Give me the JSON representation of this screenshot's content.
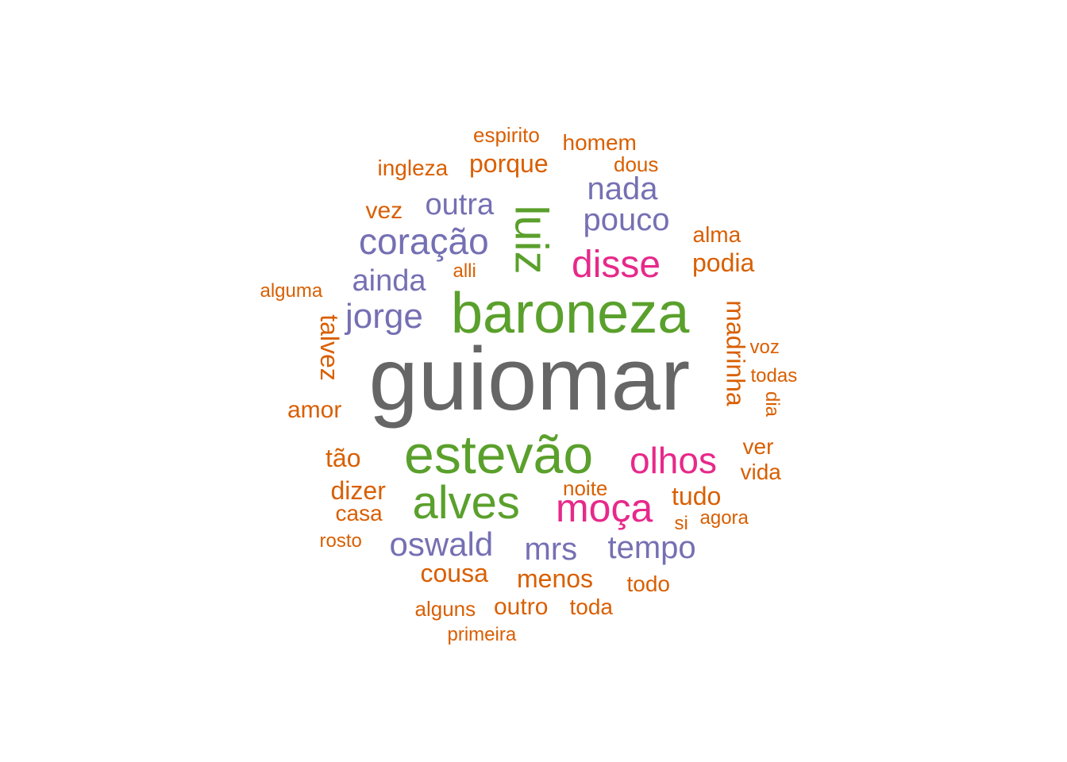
{
  "colors": {
    "gray": "#666666",
    "green": "#5aa02c",
    "magenta": "#e7298a",
    "purple": "#7570b3",
    "orange": "#d95f02"
  },
  "words": [
    {
      "text": "guiomar",
      "freq_tier": 1,
      "color": "#666666"
    },
    {
      "text": "baroneza",
      "freq_tier": 2,
      "color": "#5aa02c"
    },
    {
      "text": "estevão",
      "freq_tier": 2,
      "color": "#5aa02c"
    },
    {
      "text": "alves",
      "freq_tier": 3,
      "color": "#5aa02c"
    },
    {
      "text": "luiz",
      "freq_tier": 3,
      "color": "#5aa02c"
    },
    {
      "text": "moça",
      "freq_tier": 4,
      "color": "#e7298a"
    },
    {
      "text": "disse",
      "freq_tier": 4,
      "color": "#e7298a"
    },
    {
      "text": "olhos",
      "freq_tier": 4,
      "color": "#e7298a"
    },
    {
      "text": "coração",
      "freq_tier": 5,
      "color": "#7570b3"
    },
    {
      "text": "jorge",
      "freq_tier": 5,
      "color": "#7570b3"
    },
    {
      "text": "oswald",
      "freq_tier": 5,
      "color": "#7570b3"
    },
    {
      "text": "mrs",
      "freq_tier": 5,
      "color": "#7570b3"
    },
    {
      "text": "tempo",
      "freq_tier": 5,
      "color": "#7570b3"
    },
    {
      "text": "pouco",
      "freq_tier": 5,
      "color": "#7570b3"
    },
    {
      "text": "nada",
      "freq_tier": 5,
      "color": "#7570b3"
    },
    {
      "text": "outra",
      "freq_tier": 5,
      "color": "#7570b3"
    },
    {
      "text": "ainda",
      "freq_tier": 5,
      "color": "#7570b3"
    },
    {
      "text": "madrinha",
      "freq_tier": 6,
      "color": "#d95f02"
    },
    {
      "text": "talvez",
      "freq_tier": 6,
      "color": "#d95f02"
    },
    {
      "text": "cousa",
      "freq_tier": 6,
      "color": "#d95f02"
    },
    {
      "text": "menos",
      "freq_tier": 6,
      "color": "#d95f02"
    },
    {
      "text": "tudo",
      "freq_tier": 6,
      "color": "#d95f02"
    },
    {
      "text": "podia",
      "freq_tier": 6,
      "color": "#d95f02"
    },
    {
      "text": "porque",
      "freq_tier": 6,
      "color": "#d95f02"
    },
    {
      "text": "tão",
      "freq_tier": 6,
      "color": "#d95f02"
    },
    {
      "text": "dizer",
      "freq_tier": 6,
      "color": "#d95f02"
    },
    {
      "text": "amor",
      "freq_tier": 6,
      "color": "#d95f02"
    },
    {
      "text": "outro",
      "freq_tier": 6,
      "color": "#d95f02"
    },
    {
      "text": "vez",
      "freq_tier": 6,
      "color": "#d95f02"
    },
    {
      "text": "ingleza",
      "freq_tier": 7,
      "color": "#d95f02"
    },
    {
      "text": "casa",
      "freq_tier": 7,
      "color": "#d95f02"
    },
    {
      "text": "homem",
      "freq_tier": 7,
      "color": "#d95f02"
    },
    {
      "text": "alma",
      "freq_tier": 7,
      "color": "#d95f02"
    },
    {
      "text": "toda",
      "freq_tier": 7,
      "color": "#d95f02"
    },
    {
      "text": "todo",
      "freq_tier": 7,
      "color": "#d95f02"
    },
    {
      "text": "ver",
      "freq_tier": 7,
      "color": "#d95f02"
    },
    {
      "text": "vida",
      "freq_tier": 7,
      "color": "#d95f02"
    },
    {
      "text": "noite",
      "freq_tier": 7,
      "color": "#d95f02"
    },
    {
      "text": "alguns",
      "freq_tier": 7,
      "color": "#d95f02"
    },
    {
      "text": "espirito",
      "freq_tier": 8,
      "color": "#d95f02"
    },
    {
      "text": "dous",
      "freq_tier": 8,
      "color": "#d95f02"
    },
    {
      "text": "alguma",
      "freq_tier": 8,
      "color": "#d95f02"
    },
    {
      "text": "alli",
      "freq_tier": 8,
      "color": "#d95f02"
    },
    {
      "text": "voz",
      "freq_tier": 8,
      "color": "#d95f02"
    },
    {
      "text": "todas",
      "freq_tier": 8,
      "color": "#d95f02"
    },
    {
      "text": "dia",
      "freq_tier": 8,
      "color": "#d95f02"
    },
    {
      "text": "agora",
      "freq_tier": 8,
      "color": "#d95f02"
    },
    {
      "text": "si",
      "freq_tier": 8,
      "color": "#d95f02"
    },
    {
      "text": "rosto",
      "freq_tier": 8,
      "color": "#d95f02"
    },
    {
      "text": "primeira",
      "freq_tier": 8,
      "color": "#d95f02"
    }
  ]
}
